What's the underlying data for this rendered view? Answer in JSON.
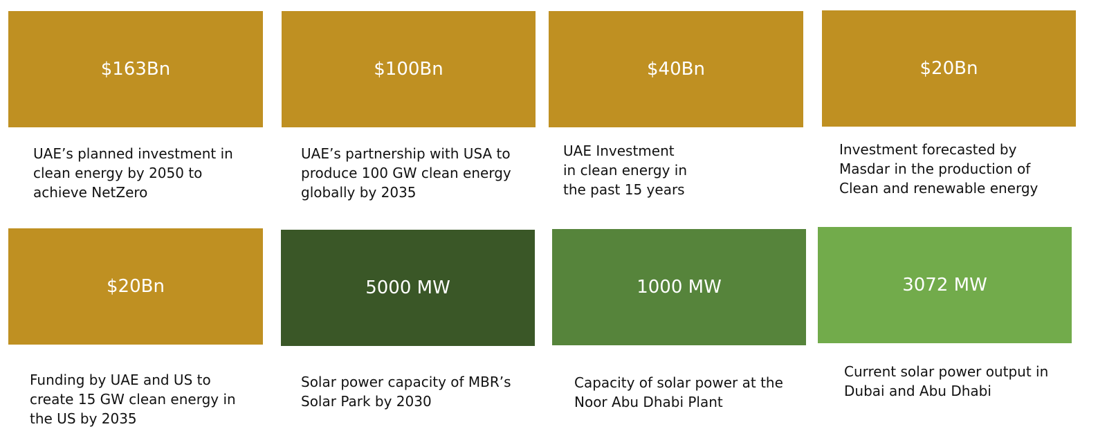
{
  "colors": {
    "gold": "#bf9022",
    "dark_green": "#3a5727",
    "mid_green": "#56843b",
    "light_green": "#72ab4b",
    "text": "#111111"
  },
  "cards": [
    {
      "value": "$163Bn",
      "caption": "UAE’s planned investment in\nclean energy by 2050 to\nachieve NetZero"
    },
    {
      "value": "$100Bn",
      "caption": "UAE’s partnership with USA to\nproduce 100 GW clean energy\nglobally by 2035"
    },
    {
      "value": "$40Bn",
      "caption": "UAE Investment\nin clean energy in\nthe past 15 years"
    },
    {
      "value": "$20Bn",
      "caption": "Investment forecasted by\nMasdar in the production of\nClean and renewable energy"
    },
    {
      "value": "$20Bn",
      "caption": "Funding by UAE and US to\ncreate 15 GW clean energy in\nthe US by 2035"
    },
    {
      "value": "5000 MW",
      "caption": "Solar power capacity of MBR’s\nSolar Park by 2030"
    },
    {
      "value": "1000 MW",
      "caption": "Capacity of solar power at the\nNoor Abu Dhabi Plant"
    },
    {
      "value": "3072 MW",
      "caption": "Current solar power output in\nDubai and Abu Dhabi"
    }
  ]
}
